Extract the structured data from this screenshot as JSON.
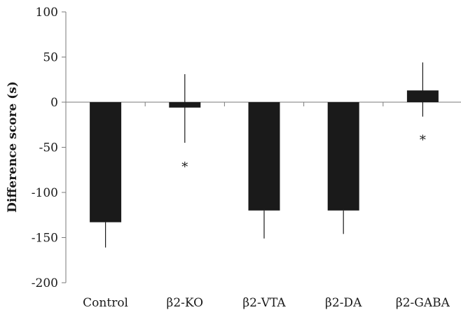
{
  "chart_data": {
    "type": "bar",
    "title": "",
    "xlabel": "",
    "ylabel": "Difference score (s)",
    "ylim": [
      -200,
      100
    ],
    "yticks": [
      100,
      50,
      0,
      -50,
      -100,
      -150,
      -200
    ],
    "ytick_labels": [
      "100",
      "50",
      "0",
      "-50",
      "-100",
      "-150",
      "-200"
    ],
    "categories": [
      "Control",
      "β2-KO",
      "β2-VTA",
      "β2-DA",
      "β2-GABA"
    ],
    "values": [
      -133,
      -6,
      -120,
      -120,
      13
    ],
    "error_upper": [
      -133,
      31,
      -120,
      -120,
      44
    ],
    "error_lower": [
      -161,
      -45,
      -151,
      -146,
      -16
    ],
    "bar_color": "#1a1a1a",
    "grid": false,
    "legend": "none",
    "annotations": [
      {
        "category": "β2-KO",
        "text": "*",
        "y": -68
      },
      {
        "category": "β2-GABA",
        "text": "*",
        "y": -38
      }
    ]
  }
}
